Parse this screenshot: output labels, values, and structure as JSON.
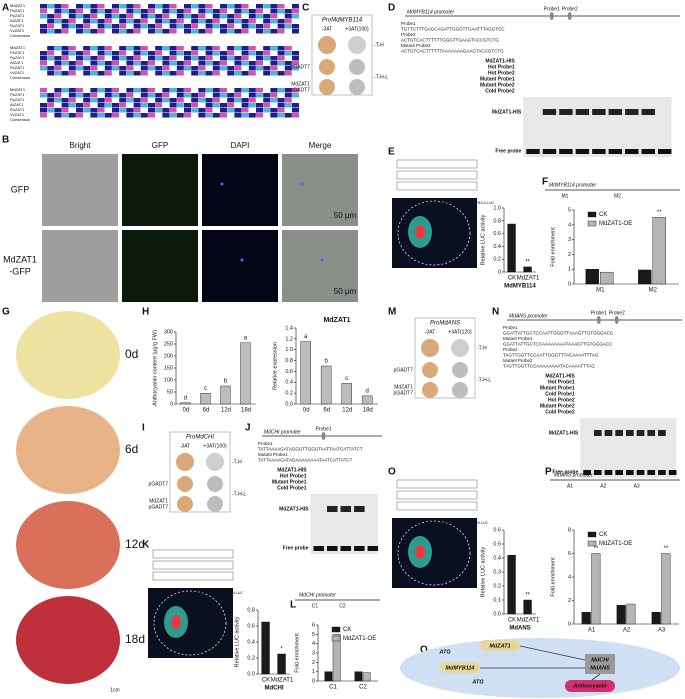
{
  "panel_labels": [
    "A",
    "B",
    "C",
    "D",
    "E",
    "F",
    "G",
    "H",
    "I",
    "J",
    "K",
    "L",
    "M",
    "N",
    "O",
    "P",
    "Q"
  ],
  "panel_a": {
    "sequences": [
      "MdZAT1",
      "PbZAT1",
      "PpZAT1",
      "AtZAT1",
      "RcZAT1",
      "VvZAT1",
      "Consensus"
    ]
  },
  "panel_b": {
    "columns": [
      "Bright",
      "GFP",
      "DAPI",
      "Merge"
    ],
    "rows": [
      "GFP",
      "MdZAT1",
      "-GFP"
    ],
    "scale": "50 μm"
  },
  "panel_c": {
    "title": "ProMdMYB114",
    "conditions": [
      "-3AT",
      "+3AT(100)"
    ],
    "rows": [
      "pGADT7",
      "MdZAT1",
      "pGADT7"
    ],
    "media": [
      "-T-H",
      "-T-H-L"
    ]
  },
  "panel_d": {
    "title": "MdMYB114 promoter",
    "probes": [
      "Probe1",
      "Probe2"
    ],
    "sequences": [
      "Probe1",
      "TGTTCTTTGAGCAGATTGGGTTGAATTTAGGTCC",
      "Probe2",
      "ACTGTCACTTTTTTGGGTTGAAGTACCGTCTG",
      "Mutant Probe2",
      "ACTGTCACTTTTTTAAAAAAAGAAGTACCGTCTG"
    ],
    "rows": [
      "MdZAT1-HIS",
      "Hot Probe1",
      "Hot Probe2",
      "Mutant Probe1",
      "Mutant Probe2",
      "Cold Probe2"
    ],
    "band": "MdZAT1-HIS",
    "free": "Free probe"
  },
  "panel_e": {
    "constructs": [
      "CaMV35s",
      "CaMV35s",
      "CaMV35s",
      "Luc"
    ],
    "leaf_labels": [
      "62-SK +pMdMYB114-LUC",
      "MdZAT1-62SK +pMdMYB114-LUC"
    ],
    "chart": {
      "type": "bar",
      "categories": [
        "CK",
        "MdZAT1"
      ],
      "values": [
        0.75,
        0.08
      ],
      "color": "#1a1a1a",
      "significance": [
        null,
        "**"
      ],
      "ylim": [
        0,
        1.0
      ],
      "yticks": [
        0,
        0.2,
        0.4,
        0.6,
        0.8,
        {
          "value": 1.0,
          "label": "1.0"
        }
      ],
      "ylabel": "Relative LUC activity",
      "xlabel": "MdMYB114"
    }
  },
  "panel_f": {
    "title": "MdMYB114 promoter",
    "sites": [
      "M1",
      "M2"
    ],
    "chart": {
      "type": "bar",
      "categories": [
        "M1",
        "M2"
      ],
      "series": [
        {
          "name": "CK",
          "color": "#1a1a1a",
          "values": [
            1.0,
            0.95
          ],
          "significance": [
            null,
            null
          ]
        },
        {
          "name": "MdZAT1-OE",
          "color": "#b5b5b5",
          "values": [
            0.8,
            4.5
          ],
          "significance": [
            null,
            "**"
          ]
        }
      ],
      "ylim": [
        0,
        5
      ],
      "yticks": [
        0,
        1,
        2,
        3,
        4,
        5
      ],
      "ylabel": "Fold enrichment"
    }
  },
  "panel_g": {
    "stages": [
      "0d",
      "6d",
      "12d",
      "18d"
    ],
    "scale": "1cm"
  },
  "panel_h": {
    "content": {
      "type": "bar",
      "categories": [
        "0d",
        "6d",
        "12d",
        "18d"
      ],
      "values": [
        5,
        45,
        75,
        255
      ],
      "color": "#bdbdbd",
      "significance": [
        "d",
        "c",
        "b",
        "a"
      ],
      "ylim": [
        0,
        300
      ],
      "yticks": [
        0,
        50,
        100,
        150,
        200,
        250,
        300
      ],
      "ylabel": "Anthocyanin content (μg/g FW)"
    },
    "expression": {
      "type": "bar",
      "title": "MdZAT1",
      "categories": [
        "0d",
        "6d",
        "12d",
        "18d"
      ],
      "values": [
        1.15,
        0.7,
        0.38,
        0.15
      ],
      "color": "#bdbdbd",
      "significance": [
        "a",
        "b",
        "c",
        "d"
      ],
      "ylim": [
        0,
        1.4
      ],
      "yticks": [
        {
          "value": 0,
          "label": "0.0"
        },
        0.2,
        0.4,
        0.6,
        0.8,
        {
          "value": 1.0,
          "label": "1.0"
        },
        1.2,
        1.4
      ],
      "ylabel": "Relative expression"
    }
  },
  "panel_i": {
    "title": "ProMdCHI",
    "conditions": [
      "-3AT",
      "+3AT(100)"
    ],
    "rows": [
      "pGADT7",
      "MdZAT1",
      "pGADT7"
    ],
    "media": [
      "-T-H",
      "-T-H-L"
    ]
  },
  "panel_j": {
    "title": "MdCHI promoter",
    "probes": [
      "Probe1"
    ],
    "sequences": [
      "Probe1",
      "TATTAAAAGATAGGGTTGGGTAATTAATCATTATCT",
      "Mutant Probe1",
      "TATTAAAAGATAGAAAAAAAATAATCATTATCT"
    ],
    "rows": [
      "MdZAT1-HIS",
      "Hot Probe1",
      "Mutant Probe1",
      "Cold Probe1"
    ],
    "band": "MdZAT1-HIS",
    "free": "Free probe"
  },
  "panel_k": {
    "leaf_labels": [
      "62-SK +pMdCHI-LUC",
      "MdZAT1-62SK +pMdCHI-LUC"
    ],
    "chart": {
      "type": "bar",
      "categories": [
        "CK",
        "MdZAT1"
      ],
      "values": [
        0.65,
        0.25
      ],
      "color": "#1a1a1a",
      "significance": [
        null,
        "*"
      ],
      "ylim": [
        0,
        0.8
      ],
      "yticks": [
        {
          "value": 0,
          "label": "0.0"
        },
        0.2,
        0.4,
        0.6,
        0.8
      ],
      "ylabel": "Relative LUC activity",
      "xlabel": "MdCHI"
    }
  },
  "panel_l": {
    "title": "MdCHI promoter",
    "sites": [
      "C1",
      "C2"
    ],
    "chart": {
      "type": "bar",
      "categories": [
        "C1",
        "C2"
      ],
      "series": [
        {
          "name": "CK",
          "color": "#1a1a1a",
          "values": [
            1.0,
            1.0
          ],
          "significance": [
            null,
            null
          ]
        },
        {
          "name": "MdZAT1-OE",
          "color": "#b5b5b5",
          "values": [
            5.0,
            0.9
          ],
          "significance": [
            "**",
            null
          ]
        }
      ],
      "ylim": [
        0,
        6
      ],
      "yticks": [
        0,
        1,
        2,
        3,
        4,
        5,
        6
      ],
      "ylabel": "Fold enrichment"
    }
  },
  "panel_m": {
    "title": "ProMdANS",
    "conditions": [
      "-3AT",
      "+3AT(120)"
    ],
    "rows": [
      "pGADT7",
      "MdZAT1",
      "pGADT7"
    ],
    "media": [
      "-T-H",
      "-T-H-L"
    ]
  },
  "panel_n": {
    "title": "MdANS promoter",
    "probes": [
      "Probe1",
      "Probe2"
    ],
    "sequences": [
      "Probe1",
      "GGATTATTGCTCCAATTGGGTTAAAGTTGTGGGACC",
      "Mutant Probe1",
      "GGATTATTGCTCCAAAAAAAATAAAGTTGTGGGACC",
      "Probe2",
      "TAGTTGGTTCCAATTGGGTTTACAAAATTTAG",
      "Mutant Probe2",
      "TAGTTGGTTCCAAAAAAAATACAAAATTTAG"
    ],
    "rows": [
      "MdZAT1-HIS",
      "Hot Probe1",
      "Mutant Probe1",
      "Cold Probe1",
      "Hot Probe2",
      "Mutant Probe2",
      "Cold Probe2"
    ],
    "band": "MdZAT1-HIS",
    "free": "Free probe"
  },
  "panel_o": {
    "leaf_labels": [
      "62-SK +pMdANS-LUC",
      "MdZAT1-62SK +pMdANS-LUC"
    ],
    "chart": {
      "type": "bar",
      "categories": [
        "CK",
        "MdZAT1"
      ],
      "values": [
        0.42,
        0.1
      ],
      "color": "#1a1a1a",
      "significance": [
        null,
        "**"
      ],
      "ylim": [
        0,
        0.6
      ],
      "yticks": [
        {
          "value": 0,
          "label": "0.0"
        },
        0.1,
        0.2,
        0.3,
        0.4,
        0.5,
        0.6
      ],
      "ylabel": "Relative LUC activity",
      "xlabel": "MdANS"
    }
  },
  "panel_p": {
    "title": "MdANS promoter",
    "sites": [
      "A1",
      "A2",
      "A3"
    ],
    "chart": {
      "type": "bar",
      "categories": [
        "A1",
        "A2",
        "A3"
      ],
      "series": [
        {
          "name": "CK",
          "color": "#1a1a1a",
          "values": [
            1.0,
            1.6,
            1.0
          ],
          "significance": [
            null,
            null,
            null
          ]
        },
        {
          "name": "MdZAT1-OE",
          "color": "#b5b5b5",
          "values": [
            6.0,
            1.7,
            6.0
          ],
          "significance": [
            "**",
            null,
            "**"
          ]
        }
      ],
      "ylim": [
        0,
        8
      ],
      "yticks": [
        0,
        2,
        4,
        6,
        8
      ],
      "ylabel": "Fold enrichment"
    }
  },
  "panel_q": {
    "regulator": "MdZAT1",
    "partner": "MdMYB114",
    "atg": "ATG",
    "targets": [
      "MdCHI",
      "MdANS"
    ],
    "output": "Anthocyanin"
  }
}
